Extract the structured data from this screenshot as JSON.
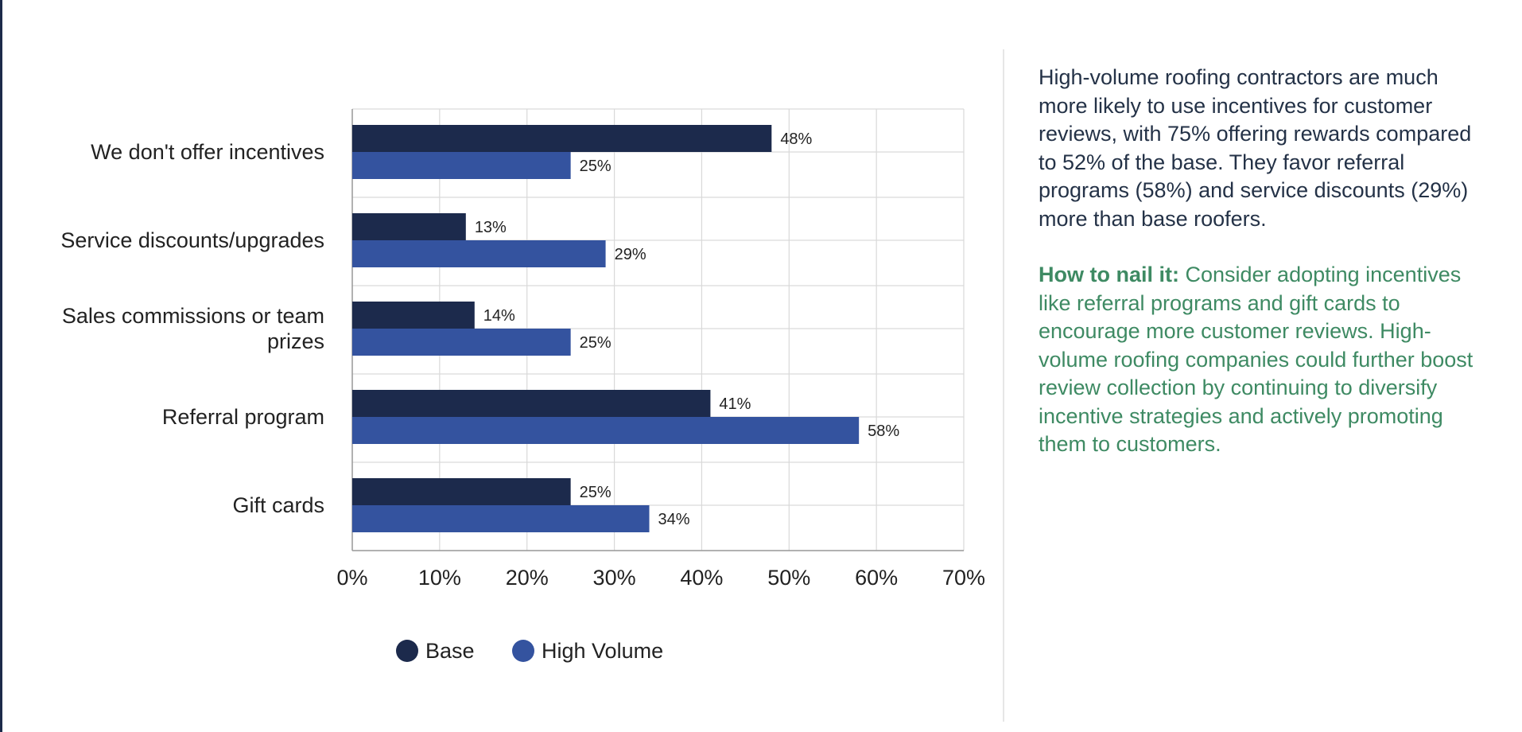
{
  "chart_data": {
    "type": "bar",
    "orientation": "horizontal",
    "categories": [
      [
        "We don't offer incentives"
      ],
      [
        "Service discounts/upgrades"
      ],
      [
        "Sales commissions or team",
        "prizes"
      ],
      [
        "Referral program"
      ],
      [
        "Gift cards"
      ]
    ],
    "series": [
      {
        "name": "Base",
        "values": [
          48,
          13,
          14,
          41,
          25
        ],
        "color": "#1c2a4c"
      },
      {
        "name": "High Volume",
        "values": [
          25,
          29,
          25,
          58,
          34
        ],
        "color": "#34539f"
      }
    ],
    "value_suffix": "%",
    "xlim": [
      0,
      70
    ],
    "xticks": [
      0,
      10,
      20,
      30,
      40,
      50,
      60,
      70
    ],
    "tick_labels": [
      "0%",
      "10%",
      "20%",
      "30%",
      "40%",
      "50%",
      "60%",
      "70%"
    ],
    "grid": true,
    "legend_position": "bottom",
    "title": "",
    "xlabel": "",
    "ylabel": ""
  },
  "side_panel": {
    "summary": "High-volume roofing contractors are much more likely to use incentives for customer reviews, with 75% offering rewards compared to 52% of the base. They favor referral programs (58%) and service discounts (29%) more than base roofers.",
    "tip_lead": "How to nail it:",
    "tip_body": "Consider adopting incentives like referral programs and gift cards to encourage more customer reviews. High-volume roofing companies could further boost review collection by continuing to diversify incentive strategies and actively promoting them to customers."
  },
  "colors": {
    "grid": "#d9d9d9",
    "text": "#222222",
    "accent_green": "#3e8a63"
  }
}
